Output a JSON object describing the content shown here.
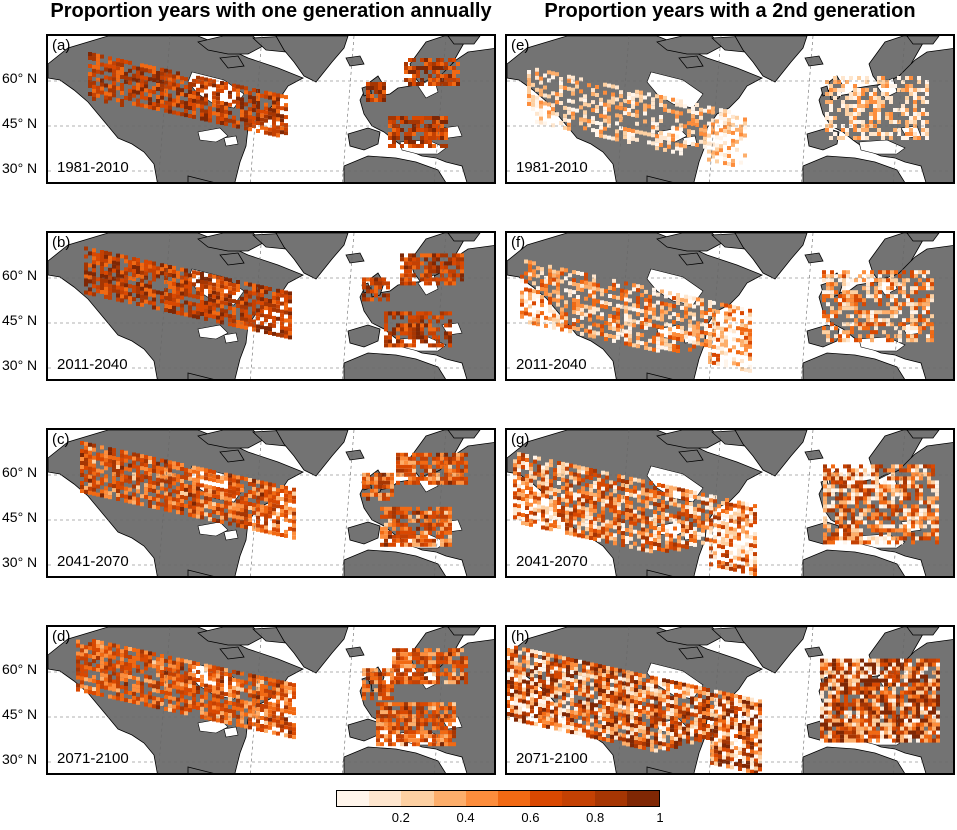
{
  "titles": {
    "left": "Proportion years with one generation annually",
    "right": "Proportion years with a 2nd generation"
  },
  "latitude_labels": [
    "60° N",
    "45° N",
    "30° N"
  ],
  "panels": [
    {
      "letter": "(a)",
      "period": "1981-2010",
      "column": "one generation annually",
      "coverage_level": 1
    },
    {
      "letter": "(b)",
      "period": "2011-2040",
      "column": "one generation annually",
      "coverage_level": 2
    },
    {
      "letter": "(c)",
      "period": "2041-2070",
      "column": "one generation annually",
      "coverage_level": 3
    },
    {
      "letter": "(d)",
      "period": "2071-2100",
      "column": "one generation annually",
      "coverage_level": 4
    },
    {
      "letter": "(e)",
      "period": "1981-2010",
      "column": "2nd generation",
      "coverage_level": 1
    },
    {
      "letter": "(f)",
      "period": "2011-2040",
      "column": "2nd generation",
      "coverage_level": 2
    },
    {
      "letter": "(g)",
      "period": "2041-2070",
      "column": "2nd generation",
      "coverage_level": 3
    },
    {
      "letter": "(h)",
      "period": "2071-2100",
      "column": "2nd generation",
      "coverage_level": 4
    }
  ],
  "colorbar": {
    "colors": [
      "#fff5eb",
      "#fee6ce",
      "#fdd0a2",
      "#fdae6b",
      "#fd8d3c",
      "#f16913",
      "#d94801",
      "#c44103",
      "#a63603",
      "#7f2704"
    ],
    "ticks": [
      "0.2",
      "0.4",
      "0.6",
      "0.8",
      "1"
    ],
    "range": [
      0,
      1
    ]
  },
  "map_colors": {
    "land": "#737373",
    "ocean": "#ffffff",
    "coast": "#000000",
    "grid": "#666666"
  }
}
